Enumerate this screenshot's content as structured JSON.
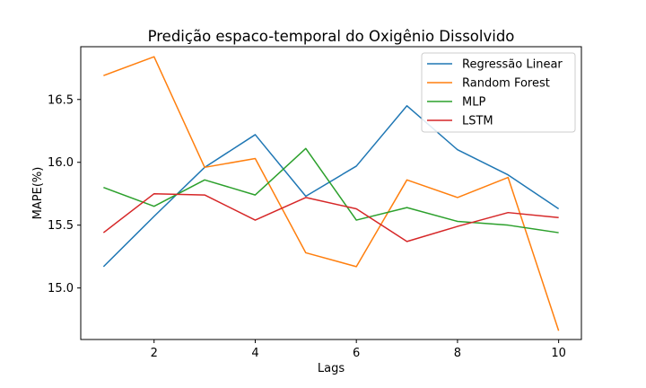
{
  "chart_data": {
    "type": "line",
    "title": "Predição espaco-temporal do Oxigênio Dissolvido",
    "xlabel": "Lags",
    "ylabel": "MAPE(%)",
    "x": [
      1,
      2,
      3,
      4,
      5,
      6,
      7,
      8,
      9,
      10
    ],
    "xlim": [
      0.55,
      10.45
    ],
    "ylim": [
      14.59,
      16.92
    ],
    "xticks": [
      2,
      4,
      6,
      8,
      10
    ],
    "yticks": [
      15.0,
      15.5,
      16.0,
      16.5
    ],
    "ytick_labels": [
      "15.0",
      "15.5",
      "16.0",
      "16.5"
    ],
    "grid": false,
    "legend_position": "top-right",
    "series": [
      {
        "name": "Regressão Linear",
        "color": "#1f77b4",
        "values": [
          15.17,
          15.57,
          15.96,
          16.22,
          15.73,
          15.97,
          16.45,
          16.1,
          15.9,
          15.63
        ]
      },
      {
        "name": "Random Forest",
        "color": "#ff7f0e",
        "values": [
          16.69,
          16.84,
          15.96,
          16.03,
          15.28,
          15.17,
          15.86,
          15.72,
          15.88,
          14.66
        ]
      },
      {
        "name": "MLP",
        "color": "#2ca02c",
        "values": [
          15.8,
          15.65,
          15.86,
          15.74,
          16.11,
          15.54,
          15.64,
          15.53,
          15.5,
          15.44
        ]
      },
      {
        "name": "LSTM",
        "color": "#d62728",
        "values": [
          15.44,
          15.75,
          15.74,
          15.54,
          15.72,
          15.63,
          15.37,
          15.49,
          15.6,
          15.56
        ]
      }
    ]
  }
}
